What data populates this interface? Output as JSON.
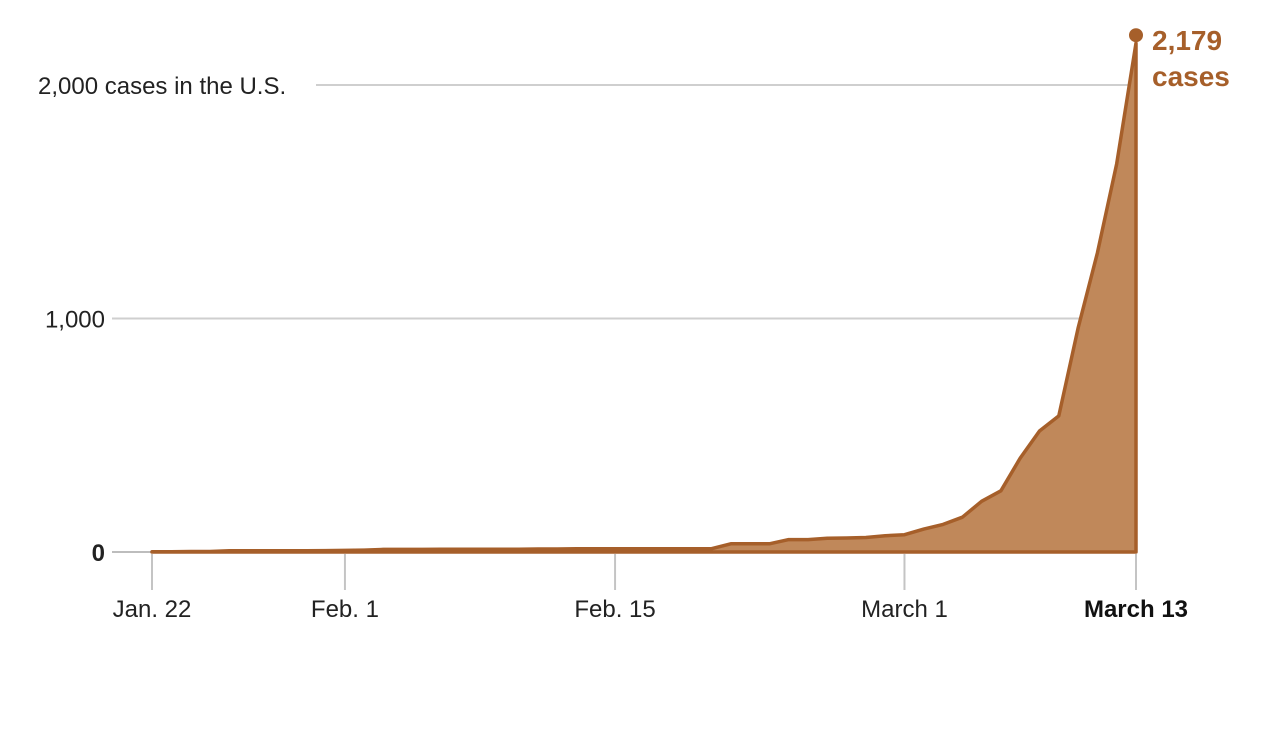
{
  "chart_data": {
    "type": "area",
    "title": "",
    "xlabel": "",
    "ylabel": "2,000 cases in the U.S.",
    "ylim": [
      0,
      2179
    ],
    "yticks": [
      {
        "value": 0,
        "label": "0"
      },
      {
        "value": 1000,
        "label": "1,000"
      },
      {
        "value": 2000,
        "label": "2,000 cases in the U.S."
      }
    ],
    "xticks": [
      {
        "date": "2020-01-22",
        "label": "Jan. 22"
      },
      {
        "date": "2020-02-01",
        "label": "Feb. 1"
      },
      {
        "date": "2020-02-15",
        "label": "Feb. 15"
      },
      {
        "date": "2020-03-01",
        "label": "March 1"
      },
      {
        "date": "2020-03-13",
        "label": "March 13",
        "bold": true
      }
    ],
    "x_range": [
      "2020-01-22",
      "2020-03-13"
    ],
    "grid": "horizontal",
    "color": "#a65f2a",
    "fill_color": "#c0885a",
    "series": [
      {
        "x": [
          "2020-01-22",
          "2020-01-23",
          "2020-01-24",
          "2020-01-25",
          "2020-01-26",
          "2020-01-27",
          "2020-01-28",
          "2020-01-29",
          "2020-01-30",
          "2020-01-31",
          "2020-02-01",
          "2020-02-02",
          "2020-02-03",
          "2020-02-04",
          "2020-02-05",
          "2020-02-06",
          "2020-02-07",
          "2020-02-08",
          "2020-02-09",
          "2020-02-10",
          "2020-02-11",
          "2020-02-12",
          "2020-02-13",
          "2020-02-14",
          "2020-02-15",
          "2020-02-16",
          "2020-02-17",
          "2020-02-18",
          "2020-02-19",
          "2020-02-20",
          "2020-02-21",
          "2020-02-22",
          "2020-02-23",
          "2020-02-24",
          "2020-02-25",
          "2020-02-26",
          "2020-02-27",
          "2020-02-28",
          "2020-02-29",
          "2020-03-01",
          "2020-03-02",
          "2020-03-03",
          "2020-03-04",
          "2020-03-05",
          "2020-03-06",
          "2020-03-07",
          "2020-03-08",
          "2020-03-09",
          "2020-03-10",
          "2020-03-11",
          "2020-03-12",
          "2020-03-13"
        ],
        "values": [
          1,
          1,
          2,
          2,
          5,
          5,
          5,
          5,
          5,
          6,
          7,
          8,
          11,
          11,
          11,
          12,
          12,
          12,
          12,
          12,
          13,
          13,
          14,
          14,
          14,
          14,
          14,
          14,
          14,
          14,
          35,
          35,
          35,
          53,
          53,
          59,
          60,
          62,
          70,
          74,
          98,
          118,
          149,
          217,
          262,
          402,
          518,
          583,
          959,
          1281,
          1663,
          2179
        ]
      }
    ],
    "annotation": {
      "value": "2,179",
      "unit": "cases"
    }
  }
}
